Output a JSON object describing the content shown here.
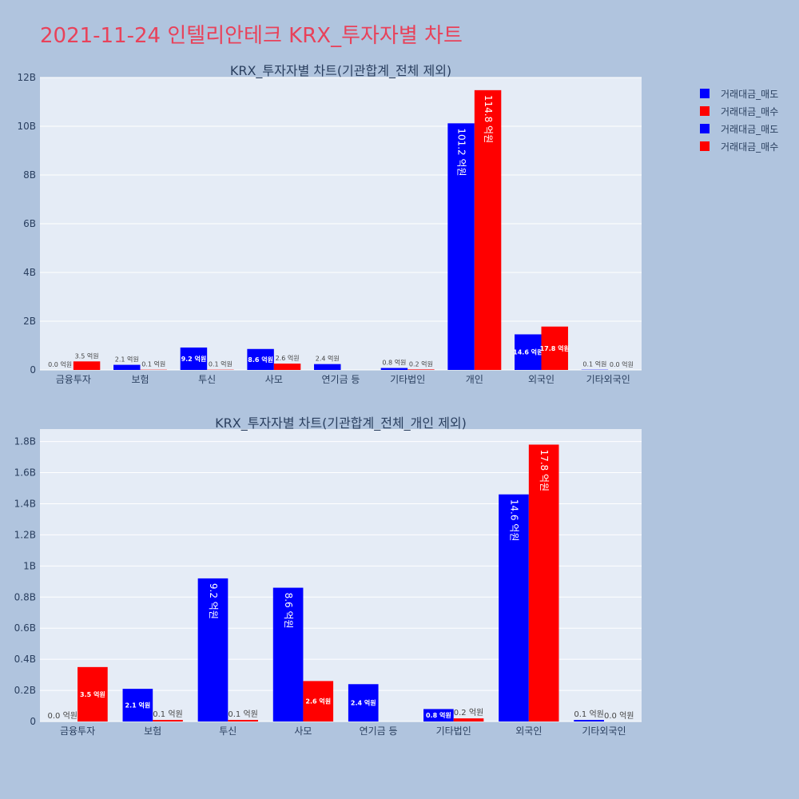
{
  "title": "2021-11-24 인텔리안테크 KRX_투자자별 차트",
  "colors": {
    "sell": "#0000ff",
    "buy": "#ff0000",
    "plot_bg": "#e5ecf6",
    "axis_text": "#2a3f5f"
  },
  "legend": [
    {
      "label": "거래대금_매도",
      "color": "#0000ff"
    },
    {
      "label": "거래대금_매수",
      "color": "#ff0000"
    },
    {
      "label": "거래대금_매도",
      "color": "#0000ff"
    },
    {
      "label": "거래대금_매수",
      "color": "#ff0000"
    }
  ],
  "chart_data": [
    {
      "type": "bar",
      "title": "KRX_투자자별 차트(기관합계_전체 제외)",
      "categories": [
        "금융투자",
        "보험",
        "투신",
        "사모",
        "연기금 등",
        "기타법인",
        "개인",
        "외국인",
        "기타외국인"
      ],
      "ylim": [
        0,
        12000000000
      ],
      "yticks": [
        0,
        2000000000,
        4000000000,
        6000000000,
        8000000000,
        10000000000,
        12000000000
      ],
      "yticklabels": [
        "0",
        "2B",
        "4B",
        "6B",
        "8B",
        "10B",
        "12B"
      ],
      "grid": true,
      "series": [
        {
          "name": "거래대금_매도",
          "color": "#0000ff",
          "values": [
            0,
            210000000,
            920000000,
            860000000,
            240000000,
            80000000,
            10120000000,
            1460000000,
            10000000
          ],
          "labels": [
            "0.0 억원",
            "2.1 억원",
            "9.2 억원",
            "8.6 억원",
            "2.4 억원",
            "0.8 억원",
            "101.2 억원",
            "14.6 억원",
            "0.1 억원"
          ]
        },
        {
          "name": "거래대금_매수",
          "color": "#ff0000",
          "values": [
            350000000,
            10000000,
            10000000,
            260000000,
            0,
            20000000,
            11480000000,
            1780000000,
            0
          ],
          "labels": [
            "3.5 억원",
            "0.1 억원",
            "0.1 억원",
            "2.6 억원",
            "",
            "0.2 억원",
            "114.8 억원",
            "17.8 억원",
            "0.0 억원"
          ]
        }
      ]
    },
    {
      "type": "bar",
      "title": "KRX_투자자별 차트(기관합계_전체_개인 제외)",
      "categories": [
        "금융투자",
        "보험",
        "투신",
        "사모",
        "연기금 등",
        "기타법인",
        "외국인",
        "기타외국인"
      ],
      "ylim": [
        0,
        1880000000
      ],
      "yticks": [
        0,
        200000000,
        400000000,
        600000000,
        800000000,
        1000000000,
        1200000000,
        1400000000,
        1600000000,
        1800000000
      ],
      "yticklabels": [
        "0",
        "0.2B",
        "0.4B",
        "0.6B",
        "0.8B",
        "1B",
        "1.2B",
        "1.4B",
        "1.6B",
        "1.8B"
      ],
      "grid": true,
      "series": [
        {
          "name": "거래대금_매도",
          "color": "#0000ff",
          "values": [
            0,
            210000000,
            920000000,
            860000000,
            240000000,
            80000000,
            1460000000,
            10000000
          ],
          "labels": [
            "0.0 억원",
            "2.1 억원",
            "9.2 억원",
            "8.6 억원",
            "2.4 억원",
            "0.8 억원",
            "14.6 억원",
            "0.1 억원"
          ]
        },
        {
          "name": "거래대금_매수",
          "color": "#ff0000",
          "values": [
            350000000,
            10000000,
            10000000,
            260000000,
            0,
            20000000,
            1780000000,
            0
          ],
          "labels": [
            "3.5 억원",
            "0.1 억원",
            "0.1 억원",
            "2.6 억원",
            "",
            "0.2 억원",
            "17.8 억원",
            "0.0 억원"
          ]
        }
      ]
    }
  ]
}
